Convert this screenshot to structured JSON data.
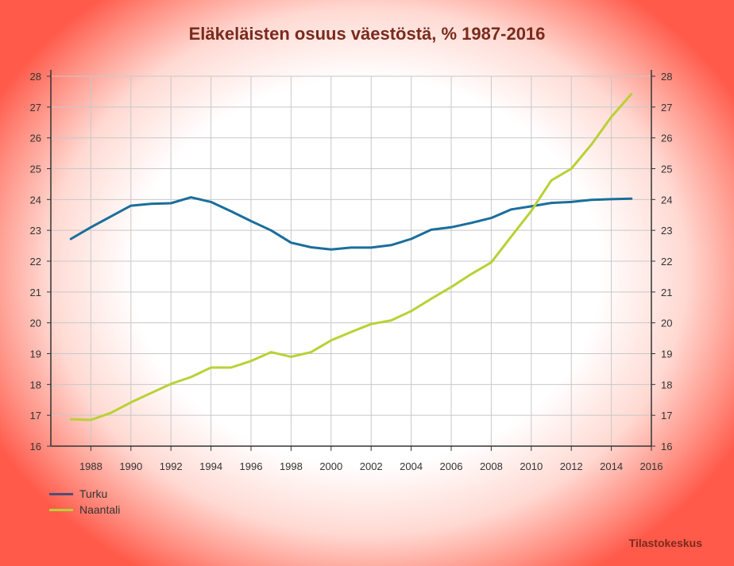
{
  "chart_data": {
    "type": "line",
    "title": "Eläkeläisten osuus väestöstä, % 1987-2016",
    "xlim": [
      1986,
      2016
    ],
    "ylim": [
      16,
      28
    ],
    "x_ticks": [
      1988,
      1990,
      1992,
      1994,
      1996,
      1998,
      2000,
      2002,
      2004,
      2006,
      2008,
      2010,
      2012,
      2014,
      2016
    ],
    "y_ticks": [
      16,
      17,
      18,
      19,
      20,
      21,
      22,
      23,
      24,
      25,
      26,
      27,
      28
    ],
    "grid": true,
    "legend_position": "bottom-left",
    "x": [
      1987,
      1988,
      1989,
      1990,
      1991,
      1992,
      1993,
      1994,
      1995,
      1996,
      1997,
      1998,
      1999,
      2000,
      2001,
      2002,
      2003,
      2004,
      2005,
      2006,
      2007,
      2008,
      2009,
      2010,
      2011,
      2012,
      2013,
      2014,
      2015
    ],
    "series": [
      {
        "name": "Turku",
        "color": "#1a6e9b",
        "values": [
          22.72,
          23.1,
          23.45,
          23.8,
          23.86,
          23.88,
          24.07,
          23.92,
          23.62,
          23.3,
          23.0,
          22.6,
          22.45,
          22.38,
          22.44,
          22.44,
          22.52,
          22.72,
          23.02,
          23.1,
          23.24,
          23.4,
          23.68,
          23.78,
          23.89,
          23.92,
          23.99,
          24.01,
          24.03
        ]
      },
      {
        "name": "Naantali",
        "color": "#b9d135",
        "values": [
          16.87,
          16.85,
          17.08,
          17.42,
          17.72,
          18.02,
          18.24,
          18.55,
          18.55,
          18.76,
          19.05,
          18.9,
          19.05,
          19.43,
          19.7,
          19.96,
          20.08,
          20.38,
          20.78,
          21.16,
          21.58,
          21.96,
          22.8,
          23.63,
          24.62,
          25.0,
          25.78,
          26.68,
          27.42
        ]
      }
    ]
  },
  "legend": {
    "turku": "Turku",
    "naantali": "Naantali"
  },
  "source": "Tilastokeskus"
}
